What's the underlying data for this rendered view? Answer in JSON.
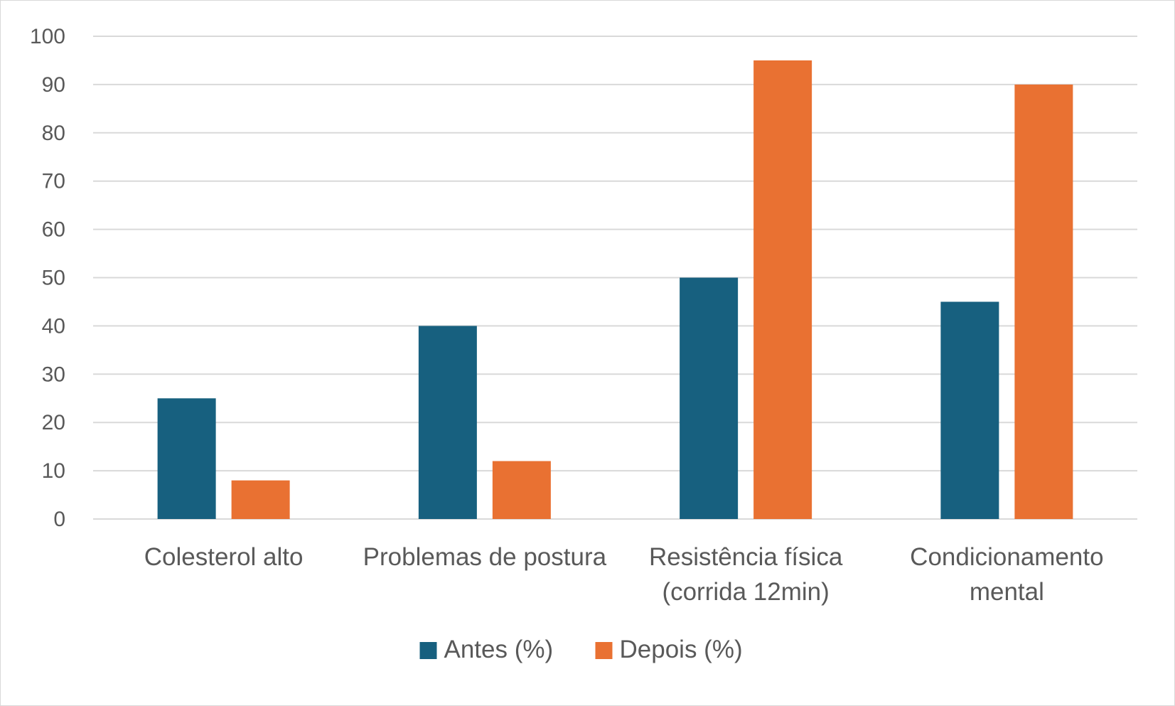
{
  "chart_data": {
    "type": "bar",
    "categories": [
      [
        "Colesterol alto"
      ],
      [
        "Problemas de postura"
      ],
      [
        "Resistência física",
        "(corrida 12min)"
      ],
      [
        "Condicionamento",
        "mental"
      ]
    ],
    "series": [
      {
        "name": "Antes (%)",
        "color": "#17607F",
        "values": [
          25,
          40,
          50,
          45
        ]
      },
      {
        "name": "Depois (%)",
        "color": "#E97132",
        "values": [
          8,
          12,
          95,
          90
        ]
      }
    ],
    "ylim": [
      0,
      100
    ],
    "yticks": [
      0,
      10,
      20,
      30,
      40,
      50,
      60,
      70,
      80,
      90,
      100
    ],
    "grid": true,
    "legend": "bottom"
  }
}
